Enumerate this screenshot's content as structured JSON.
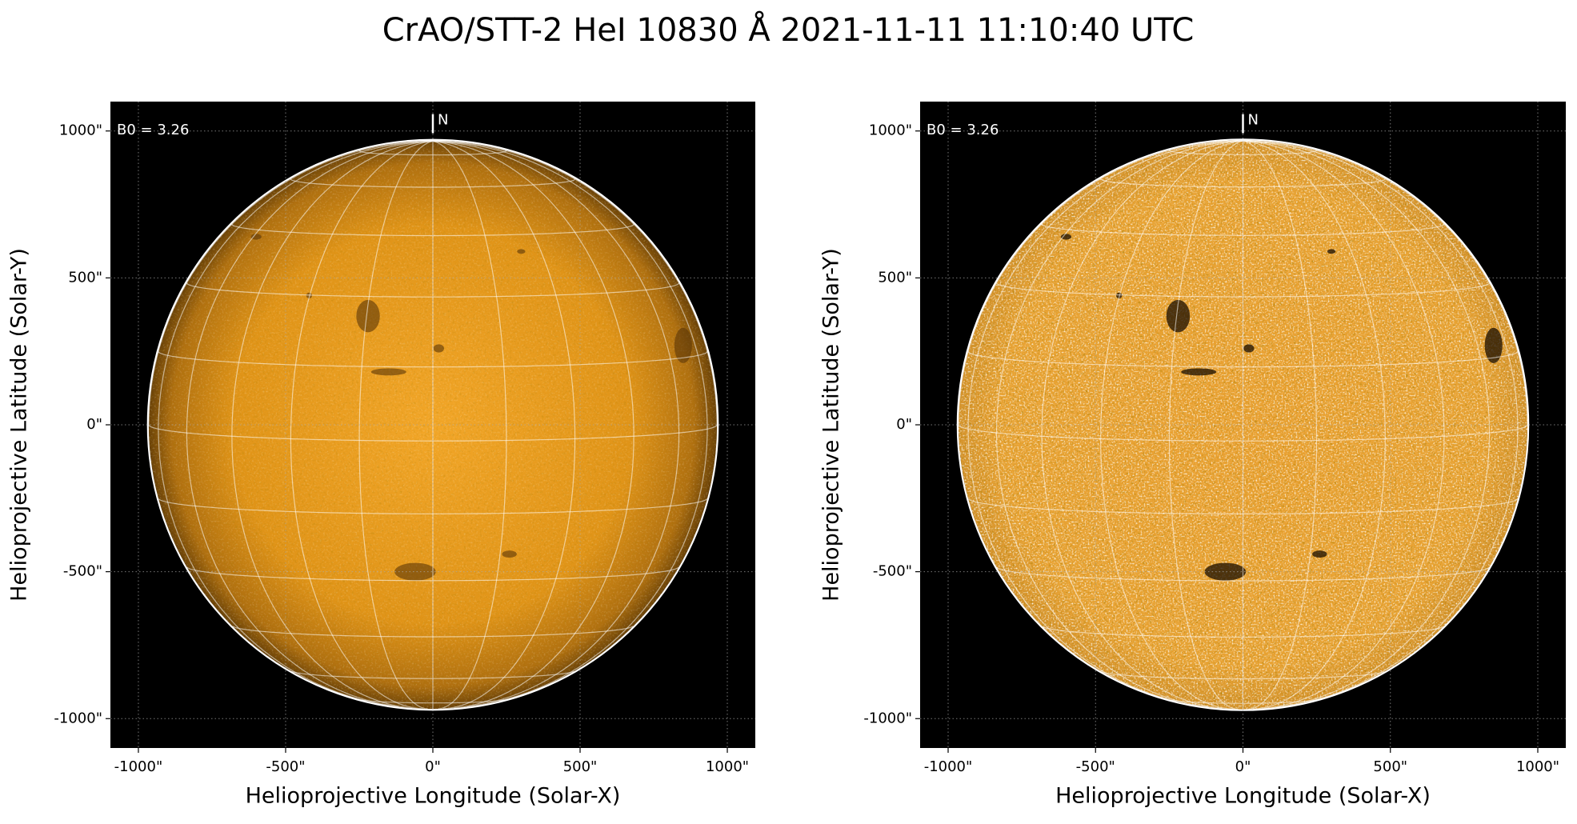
{
  "title": "CrAO/STT-2 HeI 10830 Å 2021-11-11 11:10:40 UTC",
  "chart_data": [
    {
      "type": "image",
      "xlabel": "Helioprojective Longitude (Solar-X)",
      "ylabel": "Helioprojective Latitude (Solar-Y)",
      "xlim": [
        -1095,
        1095
      ],
      "ylim": [
        -1100,
        1100
      ],
      "xticks": [
        {
          "value": -1000,
          "label": "-1000\""
        },
        {
          "value": -500,
          "label": "-500\""
        },
        {
          "value": 0,
          "label": "0\""
        },
        {
          "value": 500,
          "label": "500\""
        },
        {
          "value": 1000,
          "label": "1000\""
        }
      ],
      "yticks": [
        {
          "value": -1000,
          "label": "-1000\""
        },
        {
          "value": -500,
          "label": "-500\""
        },
        {
          "value": 0,
          "label": "0\""
        },
        {
          "value": 500,
          "label": "500\""
        },
        {
          "value": 1000,
          "label": "1000\""
        }
      ],
      "grid": true,
      "b0_label": "B0 = 3.26",
      "north_label": "N",
      "style": "plain"
    },
    {
      "type": "image",
      "xlabel": "Helioprojective Longitude (Solar-X)",
      "ylabel": "Helioprojective Latitude (Solar-Y)",
      "xlim": [
        -1095,
        1095
      ],
      "ylim": [
        -1100,
        1100
      ],
      "xticks": [
        {
          "value": -1000,
          "label": "-1000\""
        },
        {
          "value": -500,
          "label": "-500\""
        },
        {
          "value": 0,
          "label": "0\""
        },
        {
          "value": 500,
          "label": "500\""
        },
        {
          "value": 1000,
          "label": "1000\""
        }
      ],
      "yticks": [
        {
          "value": -1000,
          "label": "-1000\""
        },
        {
          "value": -500,
          "label": "-500\""
        },
        {
          "value": 0,
          "label": "0\""
        },
        {
          "value": 500,
          "label": "500\""
        },
        {
          "value": 1000,
          "label": "1000\""
        }
      ],
      "grid": true,
      "b0_label": "B0 = 3.26",
      "north_label": "N",
      "style": "enhanced"
    }
  ]
}
